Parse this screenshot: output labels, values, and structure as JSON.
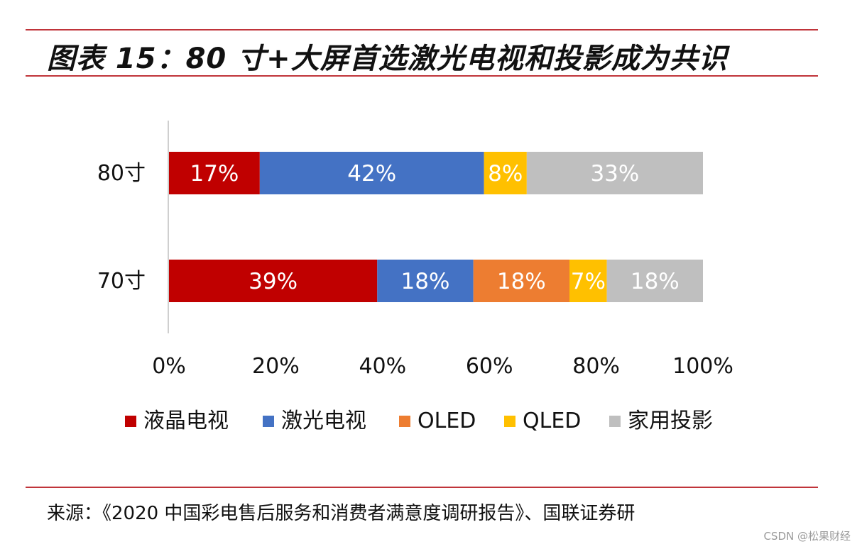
{
  "header": {
    "title": "图表 15：80 寸+大屏首选激光电视和投影成为共识"
  },
  "chart_data": {
    "type": "bar",
    "orientation": "horizontal",
    "stacked": true,
    "categories": [
      "80寸",
      "70寸"
    ],
    "series": [
      {
        "name": "液晶电视",
        "color": "#c00000",
        "values": [
          17,
          39
        ],
        "labels": [
          "17%",
          "39%"
        ]
      },
      {
        "name": "激光电视",
        "color": "#4472c4",
        "values": [
          42,
          18
        ],
        "labels": [
          "42%",
          "18%"
        ]
      },
      {
        "name": "OLED",
        "color": "#ed7d31",
        "values": [
          0,
          18
        ],
        "labels": [
          "",
          "18%"
        ]
      },
      {
        "name": "QLED",
        "color": "#ffc000",
        "values": [
          8,
          7
        ],
        "labels": [
          "8%",
          "7%"
        ]
      },
      {
        "name": "家用投影",
        "color": "#bfbfbf",
        "values": [
          33,
          18
        ],
        "labels": [
          "33%",
          "18%"
        ]
      }
    ],
    "xlim": [
      0,
      100
    ],
    "x_ticks": [
      "0%",
      "20%",
      "40%",
      "60%",
      "80%",
      "100%"
    ],
    "legend_position": "bottom",
    "grid": false
  },
  "footer": {
    "source": "来源：《2020 中国彩电售后服务和消费者满意度调研报告》、国联证券研",
    "watermark": "CSDN @松果财经"
  }
}
